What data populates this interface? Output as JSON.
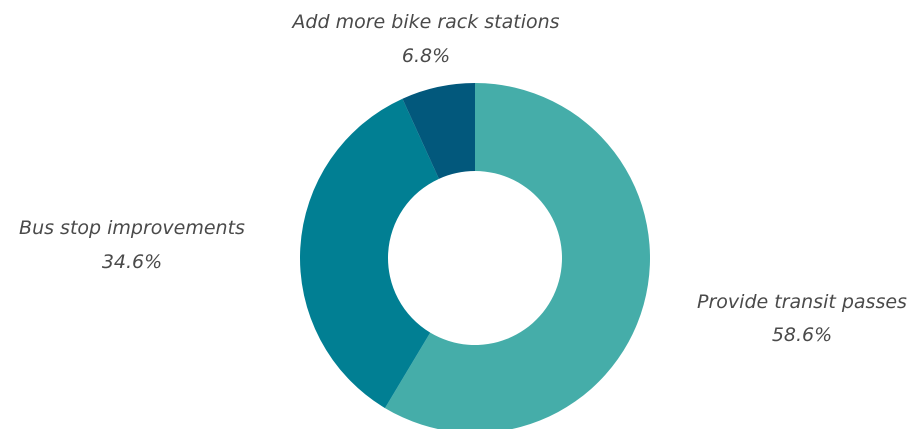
{
  "chart_data": {
    "type": "pie",
    "donut": true,
    "start_angle_deg": 0,
    "direction": "clockwise",
    "title": "",
    "slices": [
      {
        "label": "Provide transit passes",
        "value": 58.6,
        "value_label": "58.6%",
        "color": "#45ada9"
      },
      {
        "label": "Bus stop improvements",
        "value": 34.6,
        "value_label": "34.6%",
        "color": "#017f93"
      },
      {
        "label": "Add more bike rack stations",
        "value": 6.8,
        "value_label": "6.8%",
        "color": "#02587c"
      }
    ]
  }
}
